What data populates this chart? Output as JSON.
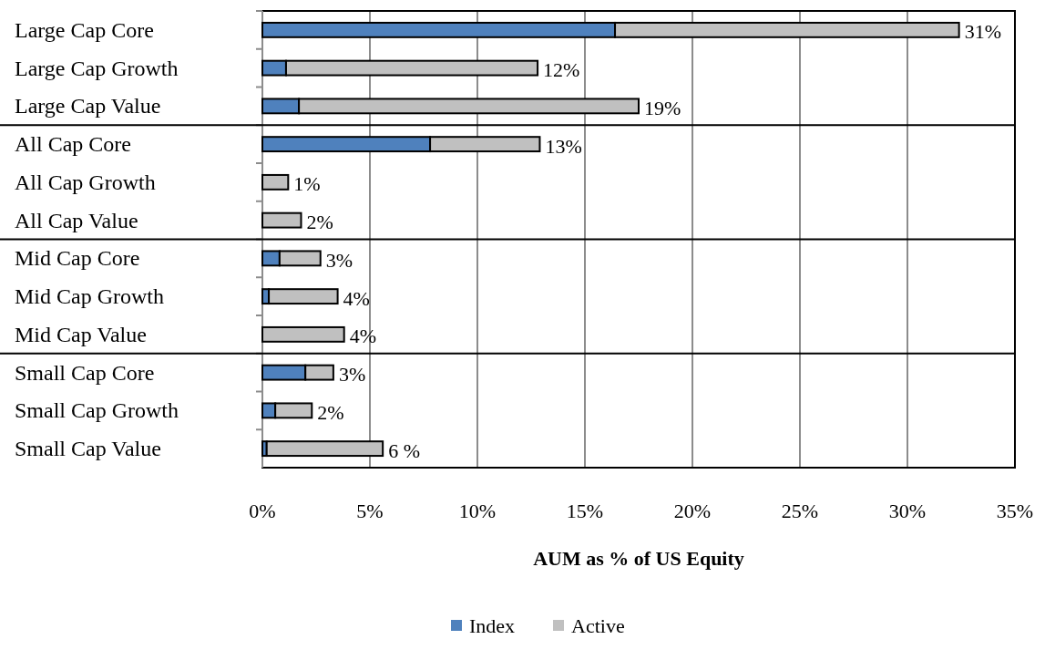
{
  "chart_data": {
    "type": "bar",
    "orientation": "horizontal",
    "stacked": true,
    "categories": [
      "Large Cap Core",
      "Large Cap Growth",
      "Large Cap Value",
      "All Cap Core",
      "All Cap Growth",
      "All Cap Value",
      "Mid Cap Core",
      "Mid Cap Growth",
      "Mid Cap Value",
      "Small Cap Core",
      "Small Cap Growth",
      "Small Cap Value"
    ],
    "series": [
      {
        "name": "Index",
        "color": "#4f81bd",
        "values": [
          16.4,
          1.1,
          1.7,
          7.8,
          0,
          0,
          0.8,
          0.3,
          null,
          2.0,
          0.6,
          0.2
        ]
      },
      {
        "name": "Active",
        "color": "#c0c0c0",
        "values": [
          16.0,
          11.7,
          15.8,
          5.1,
          1.2,
          1.8,
          1.9,
          3.2,
          3.8,
          1.3,
          1.7,
          5.4
        ]
      }
    ],
    "totals": [
      "31%",
      "12%",
      "19%",
      "13%",
      "1%",
      "2%",
      "3%",
      "4%",
      "4%",
      "3%",
      "2%",
      "6 %"
    ],
    "xlabel": "AUM as % of US Equity",
    "xlim": [
      0,
      35
    ],
    "xticks": [
      {
        "value": 0,
        "label": "0%"
      },
      {
        "value": 5,
        "label": "5%"
      },
      {
        "value": 10,
        "label": "10%"
      },
      {
        "value": 15,
        "label": "15%"
      },
      {
        "value": 20,
        "label": "20%"
      },
      {
        "value": 25,
        "label": "25%"
      },
      {
        "value": 30,
        "label": "30%"
      },
      {
        "value": 35,
        "label": "35%"
      }
    ],
    "grid": "x",
    "legend": "bottom"
  }
}
